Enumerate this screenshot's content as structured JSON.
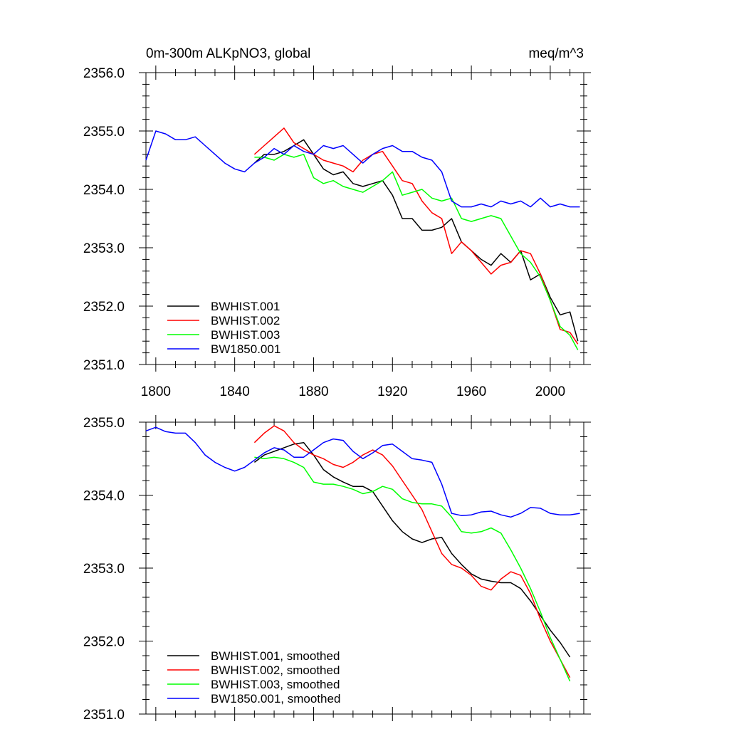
{
  "chart_data": [
    {
      "type": "line",
      "title_left": "0m-300m ALKpNO3, global",
      "title_right": "meq/m^3",
      "xlim": [
        1795,
        2017
      ],
      "ylim": [
        2351.0,
        2356.0
      ],
      "x_ticks": [
        1800,
        1840,
        1880,
        1920,
        1960,
        2000
      ],
      "x_tick_labels": [
        "1800",
        "1840",
        "1880",
        "1920",
        "1960",
        "2000"
      ],
      "y_ticks": [
        2351,
        2352,
        2353,
        2354,
        2355,
        2356
      ],
      "y_tick_labels": [
        "2351.0",
        "2352.0",
        "2353.0",
        "2354.0",
        "2355.0",
        "2356.0"
      ],
      "legend_position": "bottom-left",
      "series": [
        {
          "name": "BWHIST.001",
          "color": "#000000",
          "x": [
            1850,
            1855,
            1860,
            1865,
            1870,
            1875,
            1880,
            1885,
            1890,
            1895,
            1900,
            1905,
            1910,
            1915,
            1920,
            1925,
            1930,
            1935,
            1940,
            1945,
            1950,
            1955,
            1960,
            1965,
            1970,
            1975,
            1980,
            1985,
            1990,
            1995,
            2000,
            2005,
            2010,
            2014
          ],
          "y": [
            2354.45,
            2354.6,
            2354.6,
            2354.65,
            2354.75,
            2354.85,
            2354.6,
            2354.35,
            2354.25,
            2354.3,
            2354.1,
            2354.05,
            2354.1,
            2354.15,
            2353.9,
            2353.5,
            2353.5,
            2353.3,
            2353.3,
            2353.35,
            2353.5,
            2353.1,
            2352.95,
            2352.8,
            2352.7,
            2352.9,
            2352.75,
            2352.95,
            2352.45,
            2352.55,
            2352.15,
            2351.85,
            2351.9,
            2351.4
          ]
        },
        {
          "name": "BWHIST.002",
          "color": "#ff0000",
          "x": [
            1850,
            1855,
            1860,
            1865,
            1870,
            1875,
            1880,
            1885,
            1890,
            1895,
            1900,
            1905,
            1910,
            1915,
            1920,
            1925,
            1930,
            1935,
            1940,
            1945,
            1950,
            1955,
            1960,
            1965,
            1970,
            1975,
            1980,
            1985,
            1990,
            1995,
            2000,
            2005,
            2010,
            2014
          ],
          "y": [
            2354.6,
            2354.75,
            2354.9,
            2355.05,
            2354.8,
            2354.7,
            2354.6,
            2354.5,
            2354.45,
            2354.4,
            2354.3,
            2354.5,
            2354.6,
            2354.65,
            2354.4,
            2354.15,
            2354.1,
            2353.8,
            2353.6,
            2353.5,
            2352.9,
            2353.1,
            2352.95,
            2352.75,
            2352.55,
            2352.7,
            2352.75,
            2352.95,
            2352.9,
            2352.55,
            2352.1,
            2351.6,
            2351.55,
            2351.35
          ]
        },
        {
          "name": "BWHIST.003",
          "color": "#00ff00",
          "x": [
            1850,
            1855,
            1860,
            1865,
            1870,
            1875,
            1880,
            1885,
            1890,
            1895,
            1900,
            1905,
            1910,
            1915,
            1920,
            1925,
            1930,
            1935,
            1940,
            1945,
            1950,
            1955,
            1960,
            1965,
            1970,
            1975,
            1980,
            1985,
            1990,
            1995,
            2000,
            2005,
            2010,
            2014
          ],
          "y": [
            2354.55,
            2354.55,
            2354.5,
            2354.6,
            2354.55,
            2354.6,
            2354.2,
            2354.1,
            2354.15,
            2354.05,
            2354.0,
            2353.95,
            2354.05,
            2354.15,
            2354.3,
            2353.9,
            2353.95,
            2354.0,
            2353.85,
            2353.8,
            2353.85,
            2353.5,
            2353.45,
            2353.5,
            2353.55,
            2353.5,
            2353.2,
            2352.9,
            2352.75,
            2352.5,
            2352.1,
            2351.65,
            2351.5,
            2351.25
          ]
        },
        {
          "name": "BW1850.001",
          "color": "#0000ff",
          "x": [
            1795,
            1800,
            1805,
            1810,
            1815,
            1820,
            1825,
            1830,
            1835,
            1840,
            1845,
            1850,
            1855,
            1860,
            1865,
            1870,
            1875,
            1880,
            1885,
            1890,
            1895,
            1900,
            1905,
            1910,
            1915,
            1920,
            1925,
            1930,
            1935,
            1940,
            1945,
            1950,
            1955,
            1960,
            1965,
            1970,
            1975,
            1980,
            1985,
            1990,
            1995,
            2000,
            2005,
            2010,
            2015
          ],
          "y": [
            2354.5,
            2355.0,
            2354.95,
            2354.85,
            2354.85,
            2354.9,
            2354.75,
            2354.6,
            2354.45,
            2354.35,
            2354.3,
            2354.45,
            2354.55,
            2354.7,
            2354.6,
            2354.75,
            2354.65,
            2354.6,
            2354.75,
            2354.7,
            2354.75,
            2354.6,
            2354.45,
            2354.6,
            2354.7,
            2354.75,
            2354.65,
            2354.65,
            2354.55,
            2354.5,
            2354.3,
            2353.8,
            2353.7,
            2353.7,
            2353.75,
            2353.7,
            2353.8,
            2353.75,
            2353.8,
            2353.7,
            2353.85,
            2353.7,
            2353.75,
            2353.7,
            2353.7
          ]
        }
      ]
    },
    {
      "type": "line",
      "xlim": [
        1795,
        2017
      ],
      "ylim": [
        2351.0,
        2355.0
      ],
      "x_ticks": [
        1800,
        1840,
        1880,
        1920,
        1960,
        2000
      ],
      "y_ticks": [
        2351,
        2352,
        2353,
        2354,
        2355
      ],
      "y_tick_labels": [
        "2351.0",
        "2352.0",
        "2353.0",
        "2354.0",
        "2355.0"
      ],
      "legend_position": "bottom-left",
      "series": [
        {
          "name": "BWHIST.001, smoothed",
          "color": "#000000",
          "x": [
            1850,
            1855,
            1860,
            1865,
            1870,
            1875,
            1880,
            1885,
            1890,
            1895,
            1900,
            1905,
            1910,
            1915,
            1920,
            1925,
            1930,
            1935,
            1940,
            1945,
            1950,
            1955,
            1960,
            1965,
            1970,
            1975,
            1980,
            1985,
            1990,
            1995,
            2000,
            2005,
            2010
          ],
          "y": [
            2354.45,
            2354.55,
            2354.6,
            2354.65,
            2354.7,
            2354.72,
            2354.55,
            2354.35,
            2354.25,
            2354.18,
            2354.12,
            2354.12,
            2354.05,
            2353.85,
            2353.65,
            2353.5,
            2353.4,
            2353.35,
            2353.4,
            2353.42,
            2353.2,
            2353.05,
            2352.92,
            2352.85,
            2352.82,
            2352.8,
            2352.8,
            2352.72,
            2352.55,
            2352.35,
            2352.15,
            2351.98,
            2351.78
          ]
        },
        {
          "name": "BWHIST.002, smoothed",
          "color": "#ff0000",
          "x": [
            1850,
            1855,
            1860,
            1865,
            1870,
            1875,
            1880,
            1885,
            1890,
            1895,
            1900,
            1905,
            1910,
            1915,
            1920,
            1925,
            1930,
            1935,
            1940,
            1945,
            1950,
            1955,
            1960,
            1965,
            1970,
            1975,
            1980,
            1985,
            1990,
            1995,
            2000,
            2005,
            2010
          ],
          "y": [
            2354.72,
            2354.85,
            2354.95,
            2354.88,
            2354.72,
            2354.62,
            2354.55,
            2354.5,
            2354.42,
            2354.38,
            2354.45,
            2354.55,
            2354.62,
            2354.55,
            2354.4,
            2354.2,
            2354.0,
            2353.8,
            2353.5,
            2353.2,
            2353.05,
            2353.0,
            2352.9,
            2352.75,
            2352.7,
            2352.85,
            2352.95,
            2352.9,
            2352.65,
            2352.3,
            2352.0,
            2351.75,
            2351.5
          ]
        },
        {
          "name": "BWHIST.003, smoothed",
          "color": "#00ff00",
          "x": [
            1850,
            1855,
            1860,
            1865,
            1870,
            1875,
            1880,
            1885,
            1890,
            1895,
            1900,
            1905,
            1910,
            1915,
            1920,
            1925,
            1930,
            1935,
            1940,
            1945,
            1950,
            1955,
            1960,
            1965,
            1970,
            1975,
            1980,
            1985,
            1990,
            1995,
            2000,
            2005,
            2010
          ],
          "y": [
            2354.52,
            2354.5,
            2354.52,
            2354.5,
            2354.45,
            2354.38,
            2354.18,
            2354.15,
            2354.15,
            2354.12,
            2354.08,
            2354.02,
            2354.05,
            2354.12,
            2354.08,
            2353.95,
            2353.9,
            2353.88,
            2353.88,
            2353.85,
            2353.7,
            2353.5,
            2353.48,
            2353.5,
            2353.55,
            2353.48,
            2353.25,
            2353.0,
            2352.72,
            2352.4,
            2352.05,
            2351.75,
            2351.45
          ]
        },
        {
          "name": "BW1850.001, smoothed",
          "color": "#0000ff",
          "x": [
            1795,
            1800,
            1805,
            1810,
            1815,
            1820,
            1825,
            1830,
            1835,
            1840,
            1845,
            1850,
            1855,
            1860,
            1865,
            1870,
            1875,
            1880,
            1885,
            1890,
            1895,
            1900,
            1905,
            1910,
            1915,
            1920,
            1925,
            1930,
            1935,
            1940,
            1945,
            1950,
            1955,
            1960,
            1965,
            1970,
            1975,
            1980,
            1985,
            1990,
            1995,
            2000,
            2005,
            2010,
            2015
          ],
          "y": [
            2354.88,
            2354.93,
            2354.87,
            2354.85,
            2354.85,
            2354.72,
            2354.55,
            2354.45,
            2354.38,
            2354.33,
            2354.38,
            2354.48,
            2354.58,
            2354.65,
            2354.62,
            2354.52,
            2354.52,
            2354.62,
            2354.72,
            2354.77,
            2354.75,
            2354.6,
            2354.5,
            2354.58,
            2354.68,
            2354.7,
            2354.6,
            2354.5,
            2354.48,
            2354.45,
            2354.15,
            2353.75,
            2353.72,
            2353.73,
            2353.77,
            2353.78,
            2353.73,
            2353.7,
            2353.75,
            2353.83,
            2353.82,
            2353.75,
            2353.73,
            2353.73,
            2353.75
          ]
        }
      ]
    }
  ]
}
